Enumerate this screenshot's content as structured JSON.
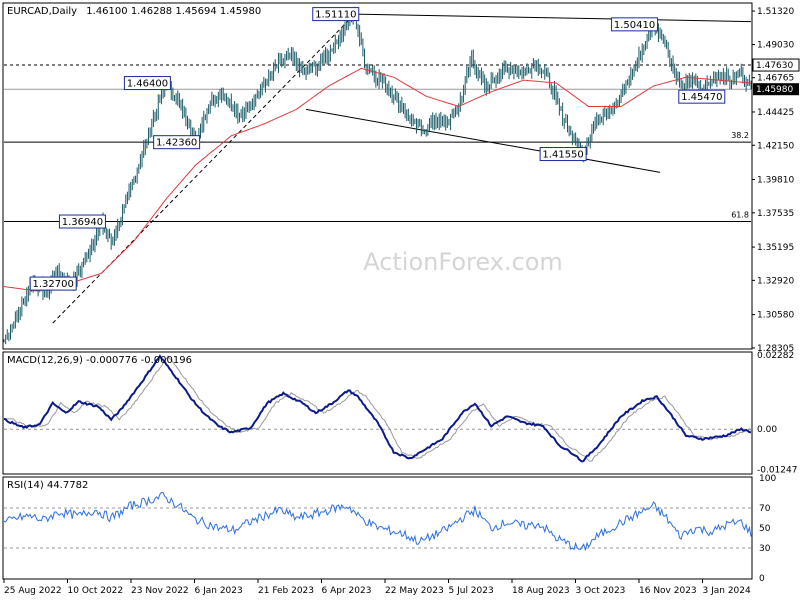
{
  "header": {
    "symbol_label": "EURCAD,Daily",
    "ohlc": "1.46100 1.46288 1.45694 1.45980"
  },
  "watermark": "ActionForex.com",
  "colors": {
    "price": "#1a5a66",
    "ma": "#e0393e",
    "macd": "#0a1a8c",
    "signal": "#9a9a9a",
    "rsi": "#2e6fe0",
    "level_line": "#000000",
    "label_border": "#1a2a9c",
    "price_box": "#000000"
  },
  "x_axis": {
    "labels": [
      "25 Aug 2022",
      "10 Oct 2022",
      "23 Nov 2022",
      "6 Jan 2023",
      "21 Feb 2023",
      "6 Apr 2023",
      "22 May 2023",
      "5 Jul 2023",
      "18 Aug 2023",
      "3 Oct 2023",
      "16 Nov 2023",
      "3 Jan 2024"
    ]
  },
  "chart_data": [
    {
      "type": "line",
      "title": "EURCAD,Daily",
      "ylim": [
        1.283,
        1.518
      ],
      "y_ticks": [
        "1.51320",
        "1.49030",
        "1.46765",
        "1.44425",
        "1.42150",
        "1.39810",
        "1.37535",
        "1.35195",
        "1.32920",
        "1.30580",
        "1.28305"
      ],
      "current_price": "1.45980",
      "current_level_label": "1.47630",
      "moving_average": true,
      "price_anchors": [
        {
          "i": 0,
          "v": 1.288
        },
        {
          "i": 6,
          "v": 1.3
        },
        {
          "i": 18,
          "v": 1.33
        },
        {
          "i": 26,
          "v": 1.32
        },
        {
          "i": 32,
          "v": 1.336
        },
        {
          "i": 42,
          "v": 1.327
        },
        {
          "i": 52,
          "v": 1.348
        },
        {
          "i": 60,
          "v": 1.369
        },
        {
          "i": 66,
          "v": 1.355
        },
        {
          "i": 74,
          "v": 1.378
        },
        {
          "i": 84,
          "v": 1.412
        },
        {
          "i": 92,
          "v": 1.44
        },
        {
          "i": 100,
          "v": 1.464
        },
        {
          "i": 108,
          "v": 1.45
        },
        {
          "i": 114,
          "v": 1.437
        },
        {
          "i": 118,
          "v": 1.424
        },
        {
          "i": 126,
          "v": 1.45
        },
        {
          "i": 134,
          "v": 1.458
        },
        {
          "i": 138,
          "v": 1.452
        },
        {
          "i": 144,
          "v": 1.44
        },
        {
          "i": 150,
          "v": 1.448
        },
        {
          "i": 160,
          "v": 1.462
        },
        {
          "i": 168,
          "v": 1.476
        },
        {
          "i": 176,
          "v": 1.482
        },
        {
          "i": 186,
          "v": 1.47
        },
        {
          "i": 194,
          "v": 1.478
        },
        {
          "i": 204,
          "v": 1.49
        },
        {
          "i": 210,
          "v": 1.503
        },
        {
          "i": 216,
          "v": 1.511
        },
        {
          "i": 222,
          "v": 1.478
        },
        {
          "i": 228,
          "v": 1.47
        },
        {
          "i": 236,
          "v": 1.462
        },
        {
          "i": 244,
          "v": 1.45
        },
        {
          "i": 252,
          "v": 1.436
        },
        {
          "i": 260,
          "v": 1.432
        },
        {
          "i": 266,
          "v": 1.44
        },
        {
          "i": 272,
          "v": 1.436
        },
        {
          "i": 280,
          "v": 1.448
        },
        {
          "i": 288,
          "v": 1.482
        },
        {
          "i": 296,
          "v": 1.46
        },
        {
          "i": 304,
          "v": 1.47
        },
        {
          "i": 312,
          "v": 1.474
        },
        {
          "i": 320,
          "v": 1.47
        },
        {
          "i": 326,
          "v": 1.478
        },
        {
          "i": 334,
          "v": 1.47
        },
        {
          "i": 342,
          "v": 1.446
        },
        {
          "i": 350,
          "v": 1.428
        },
        {
          "i": 356,
          "v": 1.416
        },
        {
          "i": 362,
          "v": 1.432
        },
        {
          "i": 370,
          "v": 1.446
        },
        {
          "i": 378,
          "v": 1.45
        },
        {
          "i": 386,
          "v": 1.47
        },
        {
          "i": 394,
          "v": 1.488
        },
        {
          "i": 400,
          "v": 1.504
        },
        {
          "i": 406,
          "v": 1.496
        },
        {
          "i": 412,
          "v": 1.474
        },
        {
          "i": 418,
          "v": 1.46
        },
        {
          "i": 424,
          "v": 1.468
        },
        {
          "i": 430,
          "v": 1.458
        },
        {
          "i": 436,
          "v": 1.466
        },
        {
          "i": 442,
          "v": 1.47
        },
        {
          "i": 448,
          "v": 1.466
        },
        {
          "i": 454,
          "v": 1.472
        },
        {
          "i": 460,
          "v": 1.46
        }
      ],
      "ma_anchors": [
        {
          "i": 0,
          "v": 1.325
        },
        {
          "i": 20,
          "v": 1.322
        },
        {
          "i": 40,
          "v": 1.327
        },
        {
          "i": 60,
          "v": 1.334
        },
        {
          "i": 80,
          "v": 1.356
        },
        {
          "i": 100,
          "v": 1.385
        },
        {
          "i": 118,
          "v": 1.408
        },
        {
          "i": 140,
          "v": 1.428
        },
        {
          "i": 160,
          "v": 1.436
        },
        {
          "i": 180,
          "v": 1.446
        },
        {
          "i": 200,
          "v": 1.462
        },
        {
          "i": 220,
          "v": 1.474
        },
        {
          "i": 240,
          "v": 1.468
        },
        {
          "i": 260,
          "v": 1.455
        },
        {
          "i": 280,
          "v": 1.448
        },
        {
          "i": 300,
          "v": 1.458
        },
        {
          "i": 320,
          "v": 1.466
        },
        {
          "i": 340,
          "v": 1.464
        },
        {
          "i": 360,
          "v": 1.448
        },
        {
          "i": 380,
          "v": 1.448
        },
        {
          "i": 400,
          "v": 1.462
        },
        {
          "i": 420,
          "v": 1.468
        },
        {
          "i": 440,
          "v": 1.466
        },
        {
          "i": 460,
          "v": 1.464
        }
      ],
      "annotations": [
        {
          "label": "1.51110",
          "i": 216,
          "v": 1.5111,
          "side": "left"
        },
        {
          "label": "1.50410",
          "i": 400,
          "v": 1.5041,
          "side": "left"
        },
        {
          "label": "1.46400",
          "i": 100,
          "v": 1.464,
          "side": "left"
        },
        {
          "label": "1.42360",
          "i": 118,
          "v": 1.4236,
          "side": "left"
        },
        {
          "label": "1.41550",
          "i": 356,
          "v": 1.4155,
          "side": "left"
        },
        {
          "label": "1.45470",
          "i": 418,
          "v": 1.4547,
          "side": "right"
        },
        {
          "label": "1.36940",
          "i": 60,
          "v": 1.3694,
          "side": "left"
        },
        {
          "label": "1.32700",
          "i": 42,
          "v": 1.327,
          "side": "left"
        }
      ],
      "fib_levels": [
        {
          "label": "38.2",
          "v": 1.4236
        },
        {
          "label": "61.8",
          "v": 1.3694
        }
      ],
      "horizontal_levels": [
        {
          "v": 1.4763,
          "style": "dashed"
        },
        {
          "v": 1.4598,
          "style": "solid-gray"
        }
      ],
      "trendlines": [
        {
          "from": {
            "i": 216,
            "v": 1.5111
          },
          "to": {
            "i": 460,
            "v": 1.506
          },
          "style": "solid"
        },
        {
          "from": {
            "i": 186,
            "v": 1.446
          },
          "to": {
            "i": 404,
            "v": 1.403
          },
          "style": "solid"
        },
        {
          "from": {
            "i": 30,
            "v": 1.3
          },
          "to": {
            "i": 216,
            "v": 1.5111
          },
          "style": "dashed"
        }
      ]
    },
    {
      "type": "line",
      "title": "MACD(12,26,9) -0.000776 -0.000196",
      "ylim": [
        -0.0135,
        0.0235
      ],
      "y_ticks": [
        "0.02282",
        "0.00",
        "-0.01247"
      ],
      "series_anchors": [
        {
          "i": 0,
          "v": 0.003
        },
        {
          "i": 12,
          "v": 0.0005
        },
        {
          "i": 22,
          "v": 0.0015
        },
        {
          "i": 30,
          "v": 0.008
        },
        {
          "i": 38,
          "v": 0.005
        },
        {
          "i": 46,
          "v": 0.0085
        },
        {
          "i": 58,
          "v": 0.007
        },
        {
          "i": 66,
          "v": 0.003
        },
        {
          "i": 72,
          "v": 0.006
        },
        {
          "i": 84,
          "v": 0.014
        },
        {
          "i": 96,
          "v": 0.0225
        },
        {
          "i": 106,
          "v": 0.016
        },
        {
          "i": 116,
          "v": 0.009
        },
        {
          "i": 124,
          "v": 0.0045
        },
        {
          "i": 132,
          "v": 0.001
        },
        {
          "i": 140,
          "v": -0.001
        },
        {
          "i": 152,
          "v": 0.0005
        },
        {
          "i": 162,
          "v": 0.008
        },
        {
          "i": 172,
          "v": 0.011
        },
        {
          "i": 184,
          "v": 0.008
        },
        {
          "i": 192,
          "v": 0.005
        },
        {
          "i": 202,
          "v": 0.008
        },
        {
          "i": 212,
          "v": 0.012
        },
        {
          "i": 218,
          "v": 0.01
        },
        {
          "i": 230,
          "v": 0.002
        },
        {
          "i": 240,
          "v": -0.007
        },
        {
          "i": 250,
          "v": -0.009
        },
        {
          "i": 260,
          "v": -0.006
        },
        {
          "i": 270,
          "v": -0.003
        },
        {
          "i": 282,
          "v": 0.005
        },
        {
          "i": 290,
          "v": 0.008
        },
        {
          "i": 300,
          "v": 0.001
        },
        {
          "i": 310,
          "v": 0.004
        },
        {
          "i": 320,
          "v": 0.002
        },
        {
          "i": 332,
          "v": 0.001
        },
        {
          "i": 342,
          "v": -0.005
        },
        {
          "i": 352,
          "v": -0.008
        },
        {
          "i": 356,
          "v": -0.01
        },
        {
          "i": 366,
          "v": -0.005
        },
        {
          "i": 380,
          "v": 0.004
        },
        {
          "i": 394,
          "v": 0.009
        },
        {
          "i": 402,
          "v": 0.01
        },
        {
          "i": 410,
          "v": 0.005
        },
        {
          "i": 420,
          "v": -0.002
        },
        {
          "i": 430,
          "v": -0.003
        },
        {
          "i": 444,
          "v": -0.002
        },
        {
          "i": 454,
          "v": 0.0
        },
        {
          "i": 460,
          "v": -0.0008
        }
      ],
      "signal_lag": 5
    },
    {
      "type": "line",
      "title": "RSI(14) 44.7782",
      "ylim": [
        0,
        100
      ],
      "y_ticks": [
        "100",
        "70",
        "50",
        "30",
        "0"
      ],
      "dashed_levels": [
        70,
        30
      ],
      "series_anchors": [
        {
          "i": 0,
          "v": 55
        },
        {
          "i": 8,
          "v": 60
        },
        {
          "i": 16,
          "v": 62
        },
        {
          "i": 24,
          "v": 58
        },
        {
          "i": 34,
          "v": 66
        },
        {
          "i": 46,
          "v": 62
        },
        {
          "i": 56,
          "v": 68
        },
        {
          "i": 66,
          "v": 60
        },
        {
          "i": 78,
          "v": 72
        },
        {
          "i": 90,
          "v": 78
        },
        {
          "i": 98,
          "v": 82
        },
        {
          "i": 108,
          "v": 72
        },
        {
          "i": 116,
          "v": 60
        },
        {
          "i": 124,
          "v": 55
        },
        {
          "i": 132,
          "v": 50
        },
        {
          "i": 142,
          "v": 48
        },
        {
          "i": 150,
          "v": 55
        },
        {
          "i": 160,
          "v": 62
        },
        {
          "i": 170,
          "v": 68
        },
        {
          "i": 180,
          "v": 60
        },
        {
          "i": 192,
          "v": 64
        },
        {
          "i": 204,
          "v": 70
        },
        {
          "i": 212,
          "v": 72
        },
        {
          "i": 218,
          "v": 62
        },
        {
          "i": 228,
          "v": 52
        },
        {
          "i": 236,
          "v": 48
        },
        {
          "i": 246,
          "v": 44
        },
        {
          "i": 256,
          "v": 36
        },
        {
          "i": 264,
          "v": 42
        },
        {
          "i": 272,
          "v": 48
        },
        {
          "i": 282,
          "v": 60
        },
        {
          "i": 290,
          "v": 68
        },
        {
          "i": 300,
          "v": 50
        },
        {
          "i": 310,
          "v": 56
        },
        {
          "i": 320,
          "v": 52
        },
        {
          "i": 330,
          "v": 54
        },
        {
          "i": 340,
          "v": 40
        },
        {
          "i": 350,
          "v": 32
        },
        {
          "i": 356,
          "v": 28
        },
        {
          "i": 364,
          "v": 40
        },
        {
          "i": 376,
          "v": 52
        },
        {
          "i": 390,
          "v": 64
        },
        {
          "i": 400,
          "v": 72
        },
        {
          "i": 408,
          "v": 60
        },
        {
          "i": 416,
          "v": 42
        },
        {
          "i": 426,
          "v": 50
        },
        {
          "i": 436,
          "v": 46
        },
        {
          "i": 446,
          "v": 54
        },
        {
          "i": 454,
          "v": 56
        },
        {
          "i": 460,
          "v": 45
        }
      ]
    }
  ]
}
